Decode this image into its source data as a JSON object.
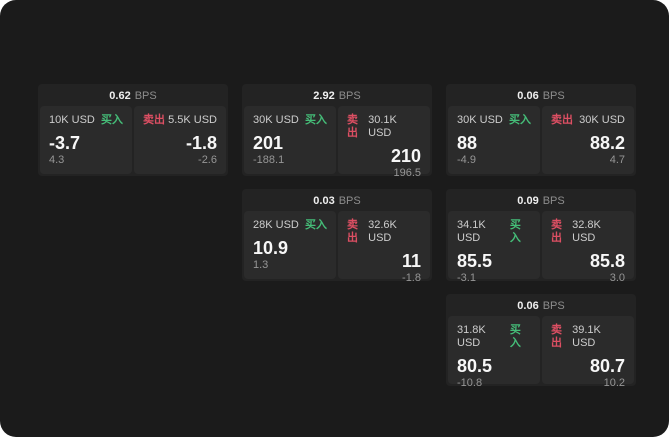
{
  "labels": {
    "bps_unit": "BPS",
    "buy": "买入",
    "sell": "卖出"
  },
  "colors": {
    "page_bg": "#1b1b1b",
    "card_bg": "#232323",
    "panel_bg": "#2b2b2b",
    "buy": "#45bd78",
    "sell": "#dd4f63"
  },
  "cards": [
    {
      "row": 1,
      "col": 1,
      "bps": "0.62",
      "buy": {
        "amount": "10K USD",
        "value": "-3.7",
        "sub": "4.3"
      },
      "sell": {
        "amount": "5.5K USD",
        "value": "-1.8",
        "sub": "-2.6"
      }
    },
    {
      "row": 1,
      "col": 2,
      "bps": "2.92",
      "buy": {
        "amount": "30K USD",
        "value": "201",
        "sub": "-188.1"
      },
      "sell": {
        "amount": "30.1K USD",
        "value": "210",
        "sub": "196.5"
      }
    },
    {
      "row": 1,
      "col": 3,
      "bps": "0.06",
      "buy": {
        "amount": "30K USD",
        "value": "88",
        "sub": "-4.9"
      },
      "sell": {
        "amount": "30K USD",
        "value": "88.2",
        "sub": "4.7"
      }
    },
    {
      "row": 2,
      "col": 2,
      "bps": "0.03",
      "buy": {
        "amount": "28K USD",
        "value": "10.9",
        "sub": "1.3"
      },
      "sell": {
        "amount": "32.6K USD",
        "value": "11",
        "sub": "-1.8"
      }
    },
    {
      "row": 2,
      "col": 3,
      "bps": "0.09",
      "buy": {
        "amount": "34.1K USD",
        "value": "85.5",
        "sub": "-3.1"
      },
      "sell": {
        "amount": "32.8K USD",
        "value": "85.8",
        "sub": "3.0"
      }
    },
    {
      "row": 3,
      "col": 3,
      "bps": "0.06",
      "buy": {
        "amount": "31.8K USD",
        "value": "80.5",
        "sub": "-10.8"
      },
      "sell": {
        "amount": "39.1K USD",
        "value": "80.7",
        "sub": "10.2"
      }
    }
  ]
}
